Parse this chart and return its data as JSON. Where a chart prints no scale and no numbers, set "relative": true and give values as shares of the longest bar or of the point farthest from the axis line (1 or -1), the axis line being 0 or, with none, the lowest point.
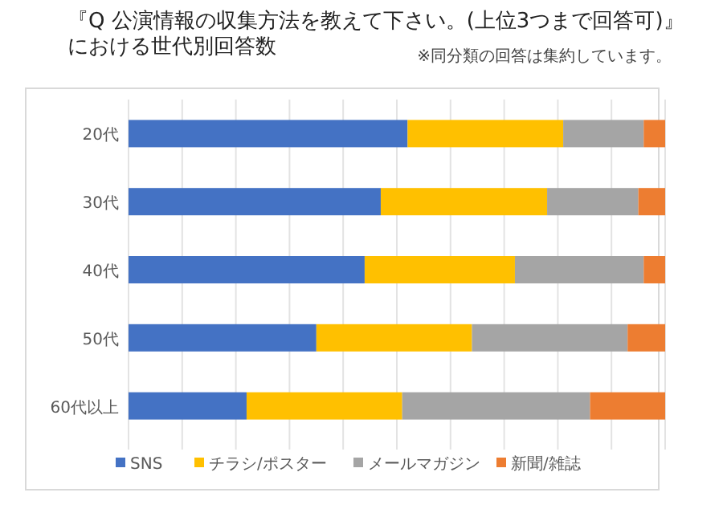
{
  "chart_data": {
    "type": "bar",
    "orientation": "horizontal",
    "stacked": true,
    "relative": true,
    "title": "『Q  公演情報の収集方法を教えて下さい。(上位3つまで回答可)』",
    "subtitle": "における世代別回答数",
    "annotations": [
      "※同分類の回答は集約しています。"
    ],
    "categories": [
      "20代",
      "30代",
      "40代",
      "50代",
      "60代以上"
    ],
    "series": [
      {
        "name": "SNS",
        "color": "#4472c4",
        "values": [
          0.52,
          0.47,
          0.44,
          0.35,
          0.22
        ]
      },
      {
        "name": "チラシ/ポスター",
        "color": "#ffc000",
        "values": [
          0.29,
          0.31,
          0.28,
          0.29,
          0.29
        ]
      },
      {
        "name": "メールマガジン",
        "color": "#a5a5a5",
        "values": [
          0.15,
          0.17,
          0.24,
          0.29,
          0.35
        ]
      },
      {
        "name": "新聞/雑誌",
        "color": "#ed7d31",
        "values": [
          0.04,
          0.05,
          0.04,
          0.07,
          0.14
        ]
      }
    ],
    "grid": "x",
    "legend": "bottom"
  }
}
